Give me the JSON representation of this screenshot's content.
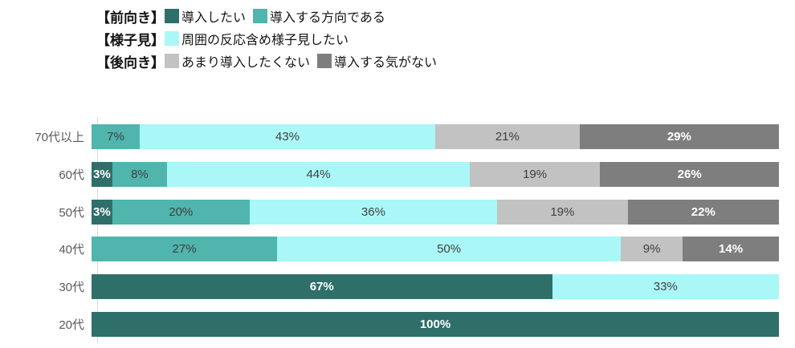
{
  "legend": {
    "groups": [
      {
        "title": "【前向き】",
        "items": [
          {
            "label": "導入したい",
            "color": "#2F6F6A"
          },
          {
            "label": "導入する方向である",
            "color": "#4FB5AD"
          }
        ]
      },
      {
        "title": "【様子見】",
        "items": [
          {
            "label": "周囲の反応含め様子見したい",
            "color": "#AAF7F7"
          }
        ]
      },
      {
        "title": "【後向き】",
        "items": [
          {
            "label": "あまり導入したくない",
            "color": "#C2C2C2"
          },
          {
            "label": "導入する気がない",
            "color": "#7E7E7E"
          }
        ]
      }
    ]
  },
  "chart_data": {
    "type": "bar",
    "orientation": "horizontal",
    "stacked": true,
    "categories": [
      "70代以上",
      "60代",
      "50代",
      "40代",
      "30代",
      "20代"
    ],
    "series": [
      {
        "name": "導入したい",
        "color": "#2F6F6A",
        "text_color": "#FFFFFF",
        "values": [
          0,
          3,
          3,
          0,
          67,
          100
        ]
      },
      {
        "name": "導入する方向である",
        "color": "#4FB5AD",
        "text_color": "#3F3F3F",
        "values": [
          7,
          8,
          20,
          27,
          0,
          0
        ]
      },
      {
        "name": "周囲の反応含め様子見したい",
        "color": "#AAF7F7",
        "text_color": "#3F3F3F",
        "values": [
          43,
          44,
          36,
          50,
          33,
          0
        ]
      },
      {
        "name": "あまり導入したくない",
        "color": "#C2C2C2",
        "text_color": "#3F3F3F",
        "values": [
          21,
          19,
          19,
          9,
          0,
          0
        ]
      },
      {
        "name": "導入する気がない",
        "color": "#7E7E7E",
        "text_color": "#FFFFFF",
        "values": [
          29,
          26,
          22,
          14,
          0,
          0
        ]
      }
    ],
    "xlim": [
      0,
      100
    ],
    "value_suffix": "%",
    "axis_line_color": "#D9D9D9",
    "category_label_color": "#595959",
    "grid": false,
    "legend_position": "top-left"
  }
}
